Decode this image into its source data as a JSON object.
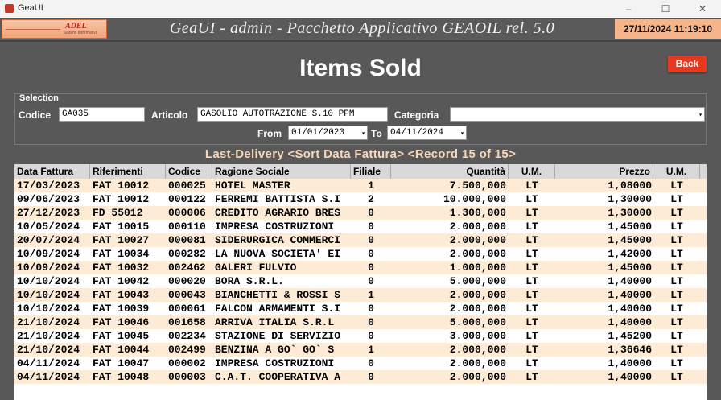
{
  "window": {
    "title": "GeaUI",
    "minimize": "–",
    "maximize": "☐",
    "close": "✕"
  },
  "banner": {
    "logo_text": "ADEL",
    "logo_subtext": "Sistemi Informativi",
    "title": "GeaUI - admin - Pacchetto Applicativo GEAOIL rel. 5.0",
    "datetime": "27/11/2024 11:19:10"
  },
  "page": {
    "title": "Items Sold",
    "back_label": "Back"
  },
  "selection": {
    "legend": "Selection",
    "codice_label": "Codice",
    "codice_value": "GA035",
    "articolo_label": "Articolo",
    "articolo_value": "GASOLIO AUTOTRAZIONE S.10 PPM",
    "categoria_label": "Categoria",
    "categoria_value": "",
    "from_label": "From",
    "from_value": "01/01/2023",
    "to_label": "To",
    "to_value": "04/11/2024"
  },
  "grid": {
    "caption": "Last-Delivery <Sort Data Fattura> <Record 15 of 15>",
    "columns": [
      "Data Fattura",
      "Riferimenti",
      "Codice",
      "Ragione Sociale",
      "Filiale",
      "Quantità",
      "U.M.",
      "Prezzo",
      "U.M."
    ],
    "rows": [
      [
        "17/03/2023",
        "FAT 10012",
        "000025",
        "HOTEL MASTER",
        "1",
        "7.500,000",
        "LT",
        "1,08000",
        "LT"
      ],
      [
        "09/06/2023",
        "FAT 10012",
        "000122",
        "FERREMI BATTISTA S.I",
        "2",
        "10.000,000",
        "LT",
        "1,30000",
        "LT"
      ],
      [
        "27/12/2023",
        "FD 55012",
        "000006",
        "CREDITO AGRARIO BRES",
        "0",
        "1.300,000",
        "LT",
        "1,30000",
        "LT"
      ],
      [
        "10/05/2024",
        "FAT 10015",
        "000110",
        "IMPRESA COSTRUZIONI",
        "0",
        "2.000,000",
        "LT",
        "1,45000",
        "LT"
      ],
      [
        "20/07/2024",
        "FAT 10027",
        "000081",
        "SIDERURGICA COMMERCI",
        "0",
        "2.000,000",
        "LT",
        "1,45000",
        "LT"
      ],
      [
        "10/09/2024",
        "FAT 10034",
        "000282",
        "LA NUOVA SOCIETA' EI",
        "0",
        "2.000,000",
        "LT",
        "1,42000",
        "LT"
      ],
      [
        "10/09/2024",
        "FAT 10032",
        "002462",
        "GALERI FULVIO",
        "0",
        "1.000,000",
        "LT",
        "1,45000",
        "LT"
      ],
      [
        "10/10/2024",
        "FAT 10042",
        "000020",
        "BORA S.R.L.",
        "0",
        "5.000,000",
        "LT",
        "1,40000",
        "LT"
      ],
      [
        "10/10/2024",
        "FAT 10043",
        "000043",
        "BIANCHETTI & ROSSI S",
        "1",
        "2.000,000",
        "LT",
        "1,40000",
        "LT"
      ],
      [
        "10/10/2024",
        "FAT 10039",
        "000061",
        "FALCON ARMAMENTI S.I",
        "0",
        "2.000,000",
        "LT",
        "1,40000",
        "LT"
      ],
      [
        "21/10/2024",
        "FAT 10046",
        "001658",
        "ARRIVA ITALIA S.R.L",
        "0",
        "5.000,000",
        "LT",
        "1,40000",
        "LT"
      ],
      [
        "21/10/2024",
        "FAT 10045",
        "002234",
        "STAZIONE DI SERVIZIO",
        "0",
        "3.000,000",
        "LT",
        "1,45200",
        "LT"
      ],
      [
        "21/10/2024",
        "FAT 10044",
        "002499",
        "BENZINA A GO` GO` S",
        "1",
        "2.000,000",
        "LT",
        "1,36646",
        "LT"
      ],
      [
        "04/11/2024",
        "FAT 10047",
        "000002",
        "IMPRESA COSTRUZIONI",
        "0",
        "2.000,000",
        "LT",
        "1,40000",
        "LT"
      ],
      [
        "04/11/2024",
        "FAT 10048",
        "000003",
        "C.A.T. COOPERATIVA A",
        "0",
        "2.000,000",
        "LT",
        "1,40000",
        "LT"
      ]
    ]
  }
}
